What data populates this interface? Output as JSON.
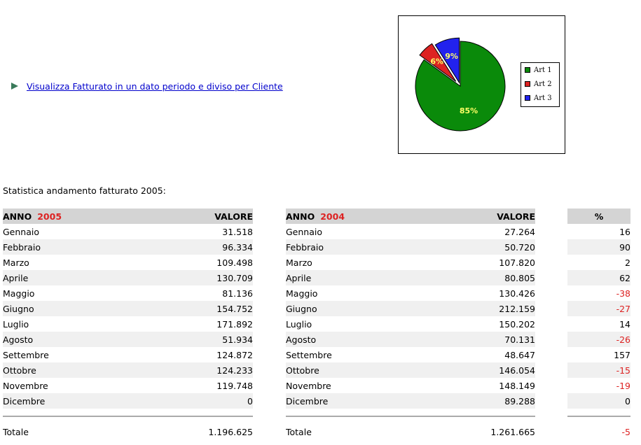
{
  "link": {
    "text": "Visualizza Fatturato in un dato periodo e diviso per Cliente"
  },
  "chart_data": {
    "type": "pie",
    "categories": [
      "Art 1",
      "Art 2",
      "Art 3"
    ],
    "values": [
      85,
      6,
      9
    ],
    "labels": [
      "85%",
      "6%",
      "9%"
    ],
    "colors": [
      "#0a8a0a",
      "#dd2222",
      "#2222ee"
    ],
    "legend": "right"
  },
  "title": "Statistica andamento fatturato 2005:",
  "headers": {
    "anno": "ANNO",
    "valore": "VALORE",
    "percent": "%"
  },
  "years": {
    "current": "2005",
    "previous": "2004"
  },
  "months": [
    "Gennaio",
    "Febbraio",
    "Marzo",
    "Aprile",
    "Maggio",
    "Giugno",
    "Luglio",
    "Agosto",
    "Settembre",
    "Ottobre",
    "Novembre",
    "Dicembre"
  ],
  "values2005": [
    "31.518",
    "96.334",
    "109.498",
    "130.709",
    "81.136",
    "154.752",
    "171.892",
    "51.934",
    "124.872",
    "124.233",
    "119.748",
    "0"
  ],
  "values2004": [
    "27.264",
    "50.720",
    "107.820",
    "80.805",
    "130.426",
    "212.159",
    "150.202",
    "70.131",
    "48.647",
    "146.054",
    "148.149",
    "89.288"
  ],
  "percent": [
    "16",
    "90",
    "2",
    "62",
    "-38",
    "-27",
    "14",
    "-26",
    "157",
    "-15",
    "-19",
    "0"
  ],
  "total": {
    "label": "Totale",
    "value2005": "1.196.625",
    "value2004": "1.261.665",
    "percent": "-5"
  }
}
